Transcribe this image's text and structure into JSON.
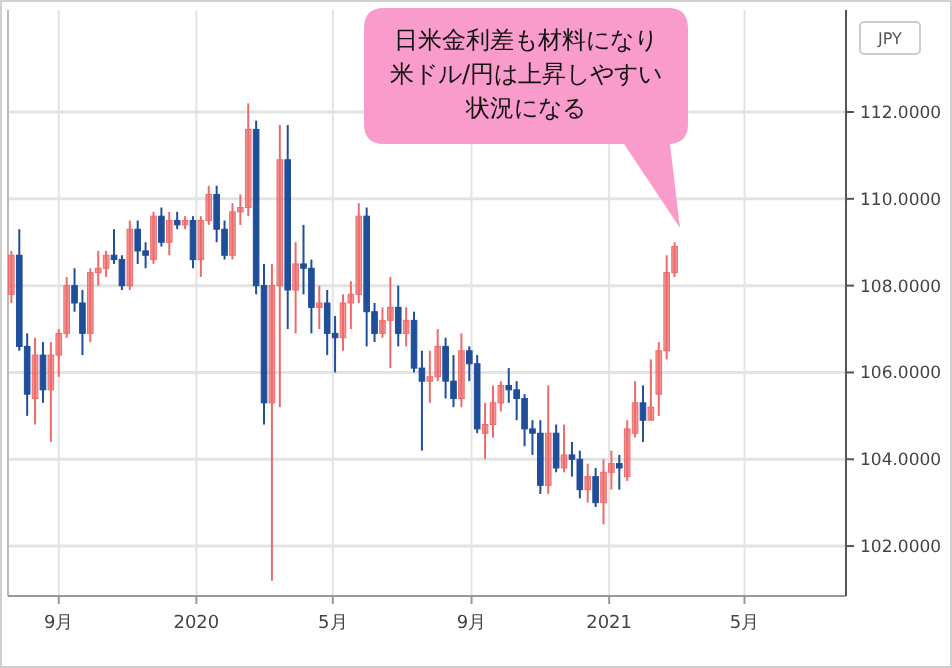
{
  "chart_data": {
    "type": "candlestick",
    "x": [
      "2019-07-21",
      "2019-07-28",
      "2019-08-04",
      "2019-08-11",
      "2019-08-18",
      "2019-08-25",
      "2019-09-01",
      "2019-09-08",
      "2019-09-15",
      "2019-09-22",
      "2019-09-29",
      "2019-10-06",
      "2019-10-13",
      "2019-10-20",
      "2019-10-27",
      "2019-11-03",
      "2019-11-10",
      "2019-11-17",
      "2019-11-24",
      "2019-12-01",
      "2019-12-08",
      "2019-12-15",
      "2019-12-22",
      "2019-12-29",
      "2020-01-05",
      "2020-01-12",
      "2020-01-19",
      "2020-01-26",
      "2020-02-02",
      "2020-02-09",
      "2020-02-16",
      "2020-02-23",
      "2020-03-01",
      "2020-03-08",
      "2020-03-15",
      "2020-03-22",
      "2020-03-29",
      "2020-04-05",
      "2020-04-12",
      "2020-04-19",
      "2020-04-26",
      "2020-05-03",
      "2020-05-10",
      "2020-05-17",
      "2020-05-24",
      "2020-05-31",
      "2020-06-07",
      "2020-06-14",
      "2020-06-21",
      "2020-06-28",
      "2020-07-05",
      "2020-07-12",
      "2020-07-19",
      "2020-07-26",
      "2020-08-02",
      "2020-08-09",
      "2020-08-16",
      "2020-08-23",
      "2020-08-30",
      "2020-09-06",
      "2020-09-13",
      "2020-09-20",
      "2020-09-27",
      "2020-10-04",
      "2020-10-11",
      "2020-10-18",
      "2020-10-25",
      "2020-11-01",
      "2020-11-08",
      "2020-11-15",
      "2020-11-22",
      "2020-11-29",
      "2020-12-06",
      "2020-12-13",
      "2020-12-20",
      "2020-12-27",
      "2021-01-03",
      "2021-01-10",
      "2021-01-17",
      "2021-01-24",
      "2021-01-31",
      "2021-02-07",
      "2021-02-14",
      "2021-02-21",
      "2021-02-28"
    ],
    "ohlc": [
      [
        107.8,
        108.8,
        107.6,
        108.7
      ],
      [
        108.7,
        109.3,
        106.5,
        106.6
      ],
      [
        106.6,
        106.9,
        105.0,
        105.5
      ],
      [
        105.4,
        106.8,
        104.8,
        106.4
      ],
      [
        106.4,
        106.7,
        105.3,
        105.6
      ],
      [
        105.6,
        106.7,
        104.4,
        106.4
      ],
      [
        106.4,
        107.0,
        105.9,
        106.9
      ],
      [
        106.9,
        108.2,
        106.8,
        108.0
      ],
      [
        108.0,
        108.4,
        107.4,
        107.6
      ],
      [
        107.6,
        107.9,
        106.4,
        106.9
      ],
      [
        106.9,
        108.4,
        106.7,
        108.3
      ],
      [
        108.3,
        108.8,
        108.0,
        108.4
      ],
      [
        108.4,
        108.8,
        108.2,
        108.7
      ],
      [
        108.7,
        109.3,
        108.5,
        108.6
      ],
      [
        108.6,
        108.7,
        107.9,
        108.0
      ],
      [
        108.0,
        109.5,
        107.9,
        109.3
      ],
      [
        109.3,
        109.5,
        108.5,
        108.8
      ],
      [
        108.8,
        109.0,
        108.4,
        108.7
      ],
      [
        108.6,
        109.7,
        108.5,
        109.6
      ],
      [
        109.6,
        109.8,
        108.9,
        109.0
      ],
      [
        109.0,
        109.7,
        108.7,
        109.5
      ],
      [
        109.5,
        109.7,
        109.3,
        109.4
      ],
      [
        109.4,
        109.6,
        109.3,
        109.5
      ],
      [
        109.5,
        109.6,
        108.4,
        108.6
      ],
      [
        108.6,
        109.6,
        108.2,
        109.5
      ],
      [
        109.5,
        110.3,
        109.4,
        110.1
      ],
      [
        110.1,
        110.3,
        109.0,
        109.3
      ],
      [
        109.3,
        109.5,
        108.6,
        108.7
      ],
      [
        108.7,
        109.9,
        108.6,
        109.7
      ],
      [
        109.7,
        110.1,
        109.4,
        109.8
      ],
      [
        109.8,
        112.2,
        109.6,
        111.6
      ],
      [
        111.6,
        111.8,
        107.8,
        108.0
      ],
      [
        108.0,
        108.5,
        104.8,
        105.3
      ],
      [
        105.3,
        108.5,
        101.2,
        108.0
      ],
      [
        108.0,
        111.7,
        105.2,
        110.9
      ],
      [
        110.9,
        111.7,
        107.0,
        107.9
      ],
      [
        107.9,
        109.0,
        106.9,
        108.5
      ],
      [
        108.5,
        109.4,
        107.8,
        108.4
      ],
      [
        108.4,
        108.6,
        106.9,
        107.5
      ],
      [
        107.5,
        108.0,
        107.0,
        107.6
      ],
      [
        107.6,
        107.9,
        106.4,
        106.9
      ],
      [
        106.9,
        107.3,
        106.0,
        106.8
      ],
      [
        106.8,
        107.8,
        106.5,
        107.6
      ],
      [
        107.6,
        108.1,
        107.0,
        107.8
      ],
      [
        107.8,
        109.9,
        107.6,
        109.6
      ],
      [
        109.6,
        109.8,
        106.6,
        107.4
      ],
      [
        107.4,
        107.6,
        106.7,
        106.9
      ],
      [
        106.9,
        107.5,
        106.8,
        107.2
      ],
      [
        107.2,
        108.2,
        106.1,
        107.5
      ],
      [
        107.5,
        108.0,
        106.6,
        106.9
      ],
      [
        106.9,
        107.5,
        106.6,
        107.2
      ],
      [
        107.2,
        107.4,
        106.0,
        106.1
      ],
      [
        106.1,
        106.5,
        104.2,
        105.8
      ],
      [
        105.8,
        106.5,
        105.3,
        105.9
      ],
      [
        105.9,
        107.0,
        105.8,
        106.6
      ],
      [
        106.6,
        106.8,
        105.4,
        105.8
      ],
      [
        105.8,
        106.4,
        105.2,
        105.4
      ],
      [
        105.4,
        106.9,
        105.2,
        106.5
      ],
      [
        106.5,
        106.6,
        105.8,
        106.2
      ],
      [
        106.2,
        106.4,
        104.6,
        104.7
      ],
      [
        104.6,
        105.3,
        104.0,
        104.8
      ],
      [
        104.8,
        105.7,
        104.5,
        105.3
      ],
      [
        105.3,
        105.8,
        105.1,
        105.7
      ],
      [
        105.7,
        106.1,
        105.3,
        105.6
      ],
      [
        105.6,
        105.8,
        104.9,
        105.4
      ],
      [
        105.4,
        105.5,
        104.3,
        104.7
      ],
      [
        104.7,
        104.9,
        104.1,
        104.6
      ],
      [
        104.6,
        104.9,
        103.2,
        103.4
      ],
      [
        103.4,
        105.7,
        103.2,
        104.6
      ],
      [
        104.6,
        104.8,
        103.7,
        103.8
      ],
      [
        103.8,
        104.8,
        103.7,
        104.1
      ],
      [
        104.1,
        104.4,
        103.6,
        104.0
      ],
      [
        104.0,
        104.2,
        103.1,
        103.3
      ],
      [
        103.3,
        103.9,
        103.0,
        103.6
      ],
      [
        103.6,
        103.8,
        102.9,
        103.0
      ],
      [
        103.0,
        104.0,
        102.5,
        103.7
      ],
      [
        103.7,
        104.2,
        103.3,
        103.9
      ],
      [
        103.9,
        104.1,
        103.3,
        103.8
      ],
      [
        103.6,
        104.9,
        103.5,
        104.7
      ],
      [
        104.6,
        105.8,
        104.5,
        105.3
      ],
      [
        105.3,
        105.7,
        104.4,
        104.9
      ],
      [
        104.9,
        106.3,
        104.9,
        105.2
      ],
      [
        105.5,
        106.7,
        105.0,
        106.5
      ],
      [
        106.5,
        108.7,
        106.3,
        108.3
      ],
      [
        108.3,
        109.0,
        108.2,
        108.9
      ]
    ],
    "colors": [
      "#ee6a6a",
      "#1f4e9a",
      "#1f4e9a",
      "#ee6a6a",
      "#1f4e9a",
      "#ee6a6a",
      "#ee6a6a",
      "#ee6a6a",
      "#1f4e9a",
      "#1f4e9a",
      "#ee6a6a",
      "#ee6a6a",
      "#ee6a6a",
      "#1f4e9a",
      "#1f4e9a",
      "#ee6a6a",
      "#1f4e9a",
      "#1f4e9a",
      "#ee6a6a",
      "#1f4e9a",
      "#ee6a6a",
      "#1f4e9a",
      "#ee6a6a",
      "#1f4e9a",
      "#ee6a6a",
      "#ee6a6a",
      "#1f4e9a",
      "#1f4e9a",
      "#ee6a6a",
      "#ee6a6a",
      "#ee6a6a",
      "#1f4e9a",
      "#1f4e9a",
      "#ee6a6a",
      "#ee6a6a",
      "#1f4e9a",
      "#ee6a6a",
      "#1f4e9a",
      "#1f4e9a",
      "#ee6a6a",
      "#1f4e9a",
      "#1f4e9a",
      "#ee6a6a",
      "#ee6a6a",
      "#ee6a6a",
      "#1f4e9a",
      "#1f4e9a",
      "#ee6a6a",
      "#ee6a6a",
      "#1f4e9a",
      "#ee6a6a",
      "#1f4e9a",
      "#1f4e9a",
      "#ee6a6a",
      "#ee6a6a",
      "#1f4e9a",
      "#1f4e9a",
      "#ee6a6a",
      "#1f4e9a",
      "#1f4e9a",
      "#ee6a6a",
      "#ee6a6a",
      "#ee6a6a",
      "#1f4e9a",
      "#1f4e9a",
      "#1f4e9a",
      "#1f4e9a",
      "#1f4e9a",
      "#ee6a6a",
      "#1f4e9a",
      "#ee6a6a",
      "#1f4e9a",
      "#1f4e9a",
      "#ee6a6a",
      "#1f4e9a",
      "#ee6a6a",
      "#ee6a6a",
      "#1f4e9a",
      "#ee6a6a",
      "#ee6a6a",
      "#1f4e9a",
      "#ee6a6a",
      "#ee6a6a",
      "#ee6a6a",
      "#ee6a6a"
    ],
    "xlim": [
      "2019-07-18",
      "2021-07-30"
    ],
    "xticks": [
      {
        "value": "2019-09-01",
        "label": "9月"
      },
      {
        "value": "2020-01-01",
        "label": "2020"
      },
      {
        "value": "2020-05-01",
        "label": "5月"
      },
      {
        "value": "2020-09-01",
        "label": "9月"
      },
      {
        "value": "2021-01-01",
        "label": "2021"
      },
      {
        "value": "2021-05-01",
        "label": "5月"
      }
    ],
    "ylim": [
      100.85,
      114.35
    ],
    "yticks": [
      {
        "value": 102,
        "label": "102.0000"
      },
      {
        "value": 104,
        "label": "104.0000"
      },
      {
        "value": 106,
        "label": "106.0000"
      },
      {
        "value": 108,
        "label": "108.0000"
      },
      {
        "value": 110,
        "label": "110.0000"
      },
      {
        "value": 112,
        "label": "112.0000"
      }
    ],
    "grid": true,
    "annotations": [
      "JPY",
      "日米金利差も材料になり米ドル/円は上昇しやすい状況になる"
    ]
  }
}
